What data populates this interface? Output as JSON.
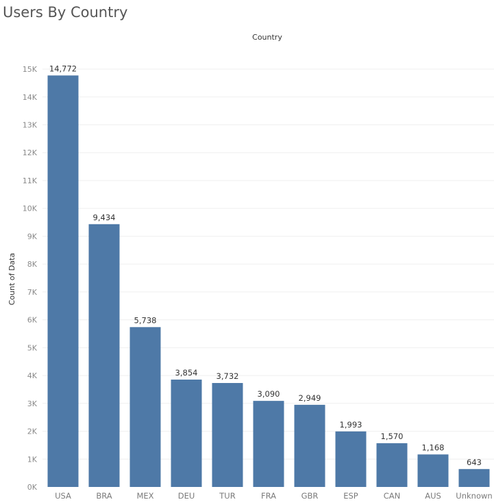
{
  "title": "Users By Country",
  "colors": {
    "bar": "#4e79a7",
    "gridline": "#efefef",
    "tick_text": "#8a8a8a",
    "title_text": "#555555"
  },
  "chart_data": {
    "type": "bar",
    "title": "Users By Country",
    "column_header": "Country",
    "xlabel": "",
    "ylabel": "Count of Data",
    "categories": [
      "USA",
      "BRA",
      "MEX",
      "DEU",
      "TUR",
      "FRA",
      "GBR",
      "ESP",
      "CAN",
      "AUS",
      "Unknown"
    ],
    "values": [
      14772,
      9434,
      5738,
      3854,
      3732,
      3090,
      2949,
      1993,
      1570,
      1168,
      643
    ],
    "value_labels": [
      "14,772",
      "9,434",
      "5,738",
      "3,854",
      "3,732",
      "3,090",
      "2,949",
      "1,993",
      "1,570",
      "1,168",
      "643"
    ],
    "ylim": [
      0,
      15800
    ],
    "yticks": [
      0,
      1000,
      2000,
      3000,
      4000,
      5000,
      6000,
      7000,
      8000,
      9000,
      10000,
      11000,
      12000,
      13000,
      14000,
      15000
    ],
    "ytick_labels": [
      "0K",
      "1K",
      "2K",
      "3K",
      "4K",
      "5K",
      "6K",
      "7K",
      "8K",
      "9K",
      "10K",
      "11K",
      "12K",
      "13K",
      "14K",
      "15K"
    ],
    "grid": true,
    "legend": "none"
  }
}
